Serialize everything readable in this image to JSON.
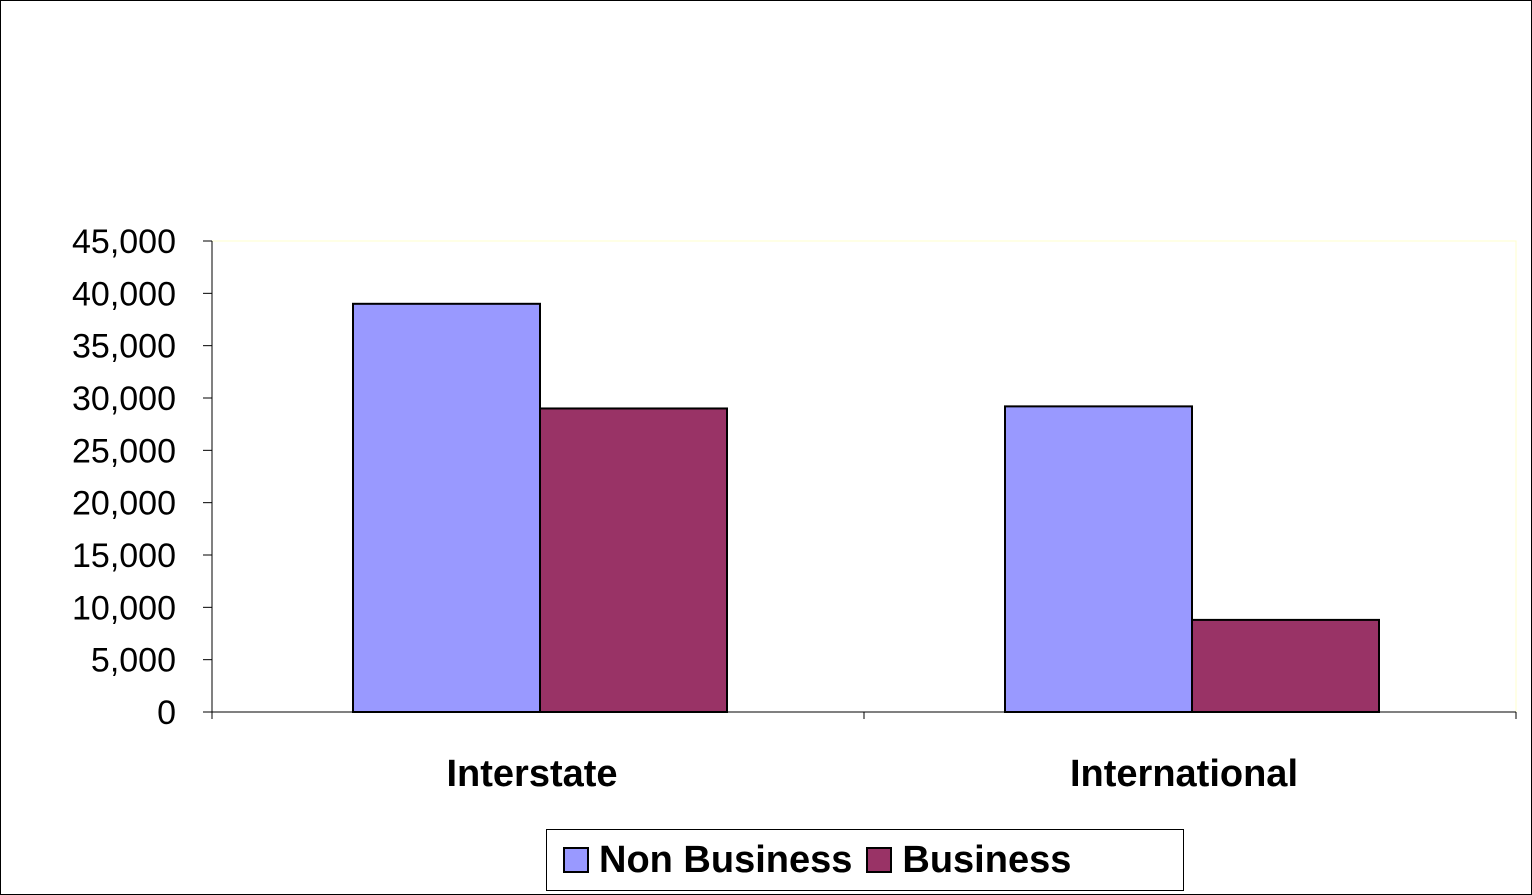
{
  "chart_data": {
    "type": "bar",
    "title": "",
    "xlabel": "",
    "ylabel": "",
    "categories": [
      "Interstate",
      "International"
    ],
    "series": [
      {
        "name": "Non Business",
        "color": "#9999ff",
        "values": [
          39000,
          29200
        ]
      },
      {
        "name": "Business",
        "color": "#993366",
        "values": [
          29000,
          8800
        ]
      }
    ],
    "ylim": [
      0,
      45000
    ],
    "yticks": [
      0,
      5000,
      10000,
      15000,
      20000,
      25000,
      30000,
      35000,
      40000,
      45000
    ],
    "ytick_labels": [
      "0",
      "5,000",
      "10,000",
      "15,000",
      "20,000",
      "25,000",
      "30,000",
      "35,000",
      "40,000",
      "45,000"
    ],
    "grid": false,
    "legend_position": "bottom",
    "plot_area_border_color": "#ffffcc"
  }
}
